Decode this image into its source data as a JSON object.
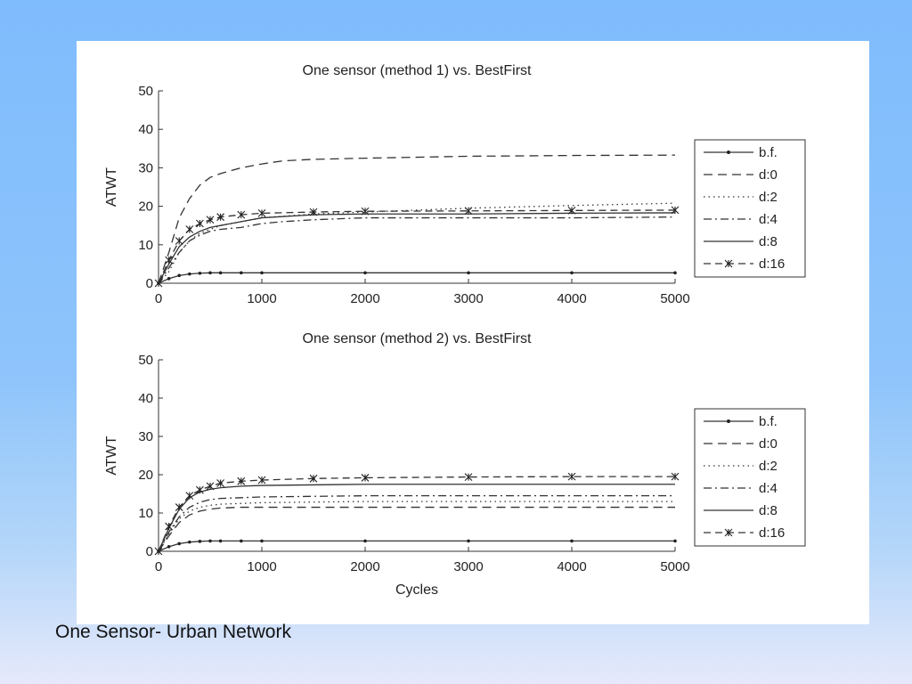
{
  "caption": "One Sensor- Urban Network",
  "chart_data": [
    {
      "type": "line",
      "title": "One sensor (method 1) vs. BestFirst",
      "xlabel": "",
      "ylabel": "ATWT",
      "xlim": [
        0,
        5000
      ],
      "ylim": [
        0,
        50
      ],
      "xticks": [
        "0",
        "1000",
        "2000",
        "3000",
        "4000",
        "5000"
      ],
      "yticks": [
        "0",
        "10",
        "20",
        "30",
        "40",
        "50"
      ],
      "legend_position": "right",
      "series": [
        {
          "name": "b.f.",
          "style": "solid-dot",
          "x": [
            0,
            100,
            200,
            300,
            400,
            500,
            600,
            800,
            1000,
            2000,
            3000,
            4000,
            5000
          ],
          "y": [
            0,
            1.2,
            2.0,
            2.4,
            2.6,
            2.7,
            2.7,
            2.7,
            2.7,
            2.7,
            2.7,
            2.7,
            2.7
          ]
        },
        {
          "name": "d:0",
          "style": "dashed",
          "x": [
            0,
            100,
            200,
            300,
            400,
            500,
            600,
            800,
            1000,
            1200,
            1500,
            2000,
            3000,
            4000,
            5000
          ],
          "y": [
            0,
            8,
            17,
            22,
            25.5,
            27.5,
            28.5,
            30,
            31,
            31.8,
            32.2,
            32.5,
            33,
            33.2,
            33.3
          ]
        },
        {
          "name": "d:2",
          "style": "dotted",
          "x": [
            0,
            100,
            200,
            300,
            400,
            500,
            600,
            800,
            1000,
            1500,
            2000,
            3000,
            4000,
            5000
          ],
          "y": [
            0,
            3,
            8,
            11,
            13,
            14,
            15,
            16,
            17,
            18,
            18.5,
            19.5,
            20.2,
            20.8
          ]
        },
        {
          "name": "d:4",
          "style": "dashdot",
          "x": [
            0,
            100,
            200,
            300,
            400,
            500,
            600,
            800,
            1000,
            1200,
            1500,
            2000,
            3000,
            4000,
            5000
          ],
          "y": [
            0,
            4,
            8,
            11,
            12.5,
            13.5,
            14,
            14.5,
            15.5,
            16,
            16.5,
            17,
            17,
            17,
            17.2
          ]
        },
        {
          "name": "d:8",
          "style": "solid",
          "x": [
            0,
            100,
            200,
            300,
            400,
            500,
            600,
            800,
            1000,
            1500,
            2000,
            3000,
            4000,
            5000
          ],
          "y": [
            0,
            5,
            9.5,
            12,
            13.5,
            14.5,
            15,
            16,
            17,
            17.8,
            18,
            18,
            18.2,
            18.3
          ]
        },
        {
          "name": "d:16",
          "style": "dashed-star",
          "x": [
            0,
            100,
            200,
            300,
            400,
            500,
            600,
            800,
            1000,
            1500,
            2000,
            3000,
            4000,
            5000
          ],
          "y": [
            0,
            6,
            11,
            14,
            15.5,
            16.5,
            17.2,
            17.8,
            18.2,
            18.5,
            18.7,
            18.8,
            18.9,
            19
          ]
        }
      ]
    },
    {
      "type": "line",
      "title": "One sensor (method 2) vs. BestFirst",
      "xlabel": "Cycles",
      "ylabel": "ATWT",
      "xlim": [
        0,
        5000
      ],
      "ylim": [
        0,
        50
      ],
      "xticks": [
        "0",
        "1000",
        "2000",
        "3000",
        "4000",
        "5000"
      ],
      "yticks": [
        "0",
        "10",
        "20",
        "30",
        "40",
        "50"
      ],
      "legend_position": "right",
      "series": [
        {
          "name": "b.f.",
          "style": "solid-dot",
          "x": [
            0,
            100,
            200,
            300,
            400,
            500,
            600,
            800,
            1000,
            2000,
            3000,
            4000,
            5000
          ],
          "y": [
            0,
            1.2,
            2.0,
            2.4,
            2.6,
            2.7,
            2.7,
            2.7,
            2.7,
            2.7,
            2.7,
            2.7,
            2.7
          ]
        },
        {
          "name": "d:0",
          "style": "dashed",
          "x": [
            0,
            100,
            200,
            300,
            400,
            500,
            600,
            800,
            1000,
            2000,
            3000,
            4000,
            5000
          ],
          "y": [
            0,
            4,
            7.5,
            9.5,
            10.5,
            11,
            11.3,
            11.5,
            11.5,
            11.5,
            11.5,
            11.5,
            11.5
          ]
        },
        {
          "name": "d:2",
          "style": "dotted",
          "x": [
            0,
            100,
            200,
            300,
            400,
            500,
            600,
            800,
            1000,
            2000,
            3000,
            4000,
            5000
          ],
          "y": [
            0,
            4.5,
            8.5,
            10.5,
            11.5,
            12,
            12.3,
            12.5,
            12.7,
            13,
            13,
            13,
            13
          ]
        },
        {
          "name": "d:4",
          "style": "dashdot",
          "x": [
            0,
            100,
            200,
            300,
            400,
            500,
            600,
            800,
            1000,
            2000,
            3000,
            4000,
            5000
          ],
          "y": [
            0,
            5,
            9,
            11.5,
            12.8,
            13.5,
            13.8,
            14,
            14.2,
            14.5,
            14.5,
            14.5,
            14.5
          ]
        },
        {
          "name": "d:8",
          "style": "solid",
          "x": [
            0,
            100,
            200,
            300,
            400,
            500,
            600,
            800,
            1000,
            2000,
            3000,
            4000,
            5000
          ],
          "y": [
            0,
            6,
            11,
            14,
            15.5,
            16.2,
            16.6,
            17,
            17.2,
            17.5,
            17.5,
            17.5,
            17.5
          ]
        },
        {
          "name": "d:16",
          "style": "dashed-star",
          "x": [
            0,
            100,
            200,
            300,
            400,
            500,
            600,
            800,
            1000,
            1500,
            2000,
            3000,
            4000,
            5000
          ],
          "y": [
            0,
            6.5,
            11.5,
            14.5,
            16,
            17,
            17.8,
            18.3,
            18.6,
            19,
            19.2,
            19.4,
            19.5,
            19.5
          ]
        }
      ]
    }
  ]
}
